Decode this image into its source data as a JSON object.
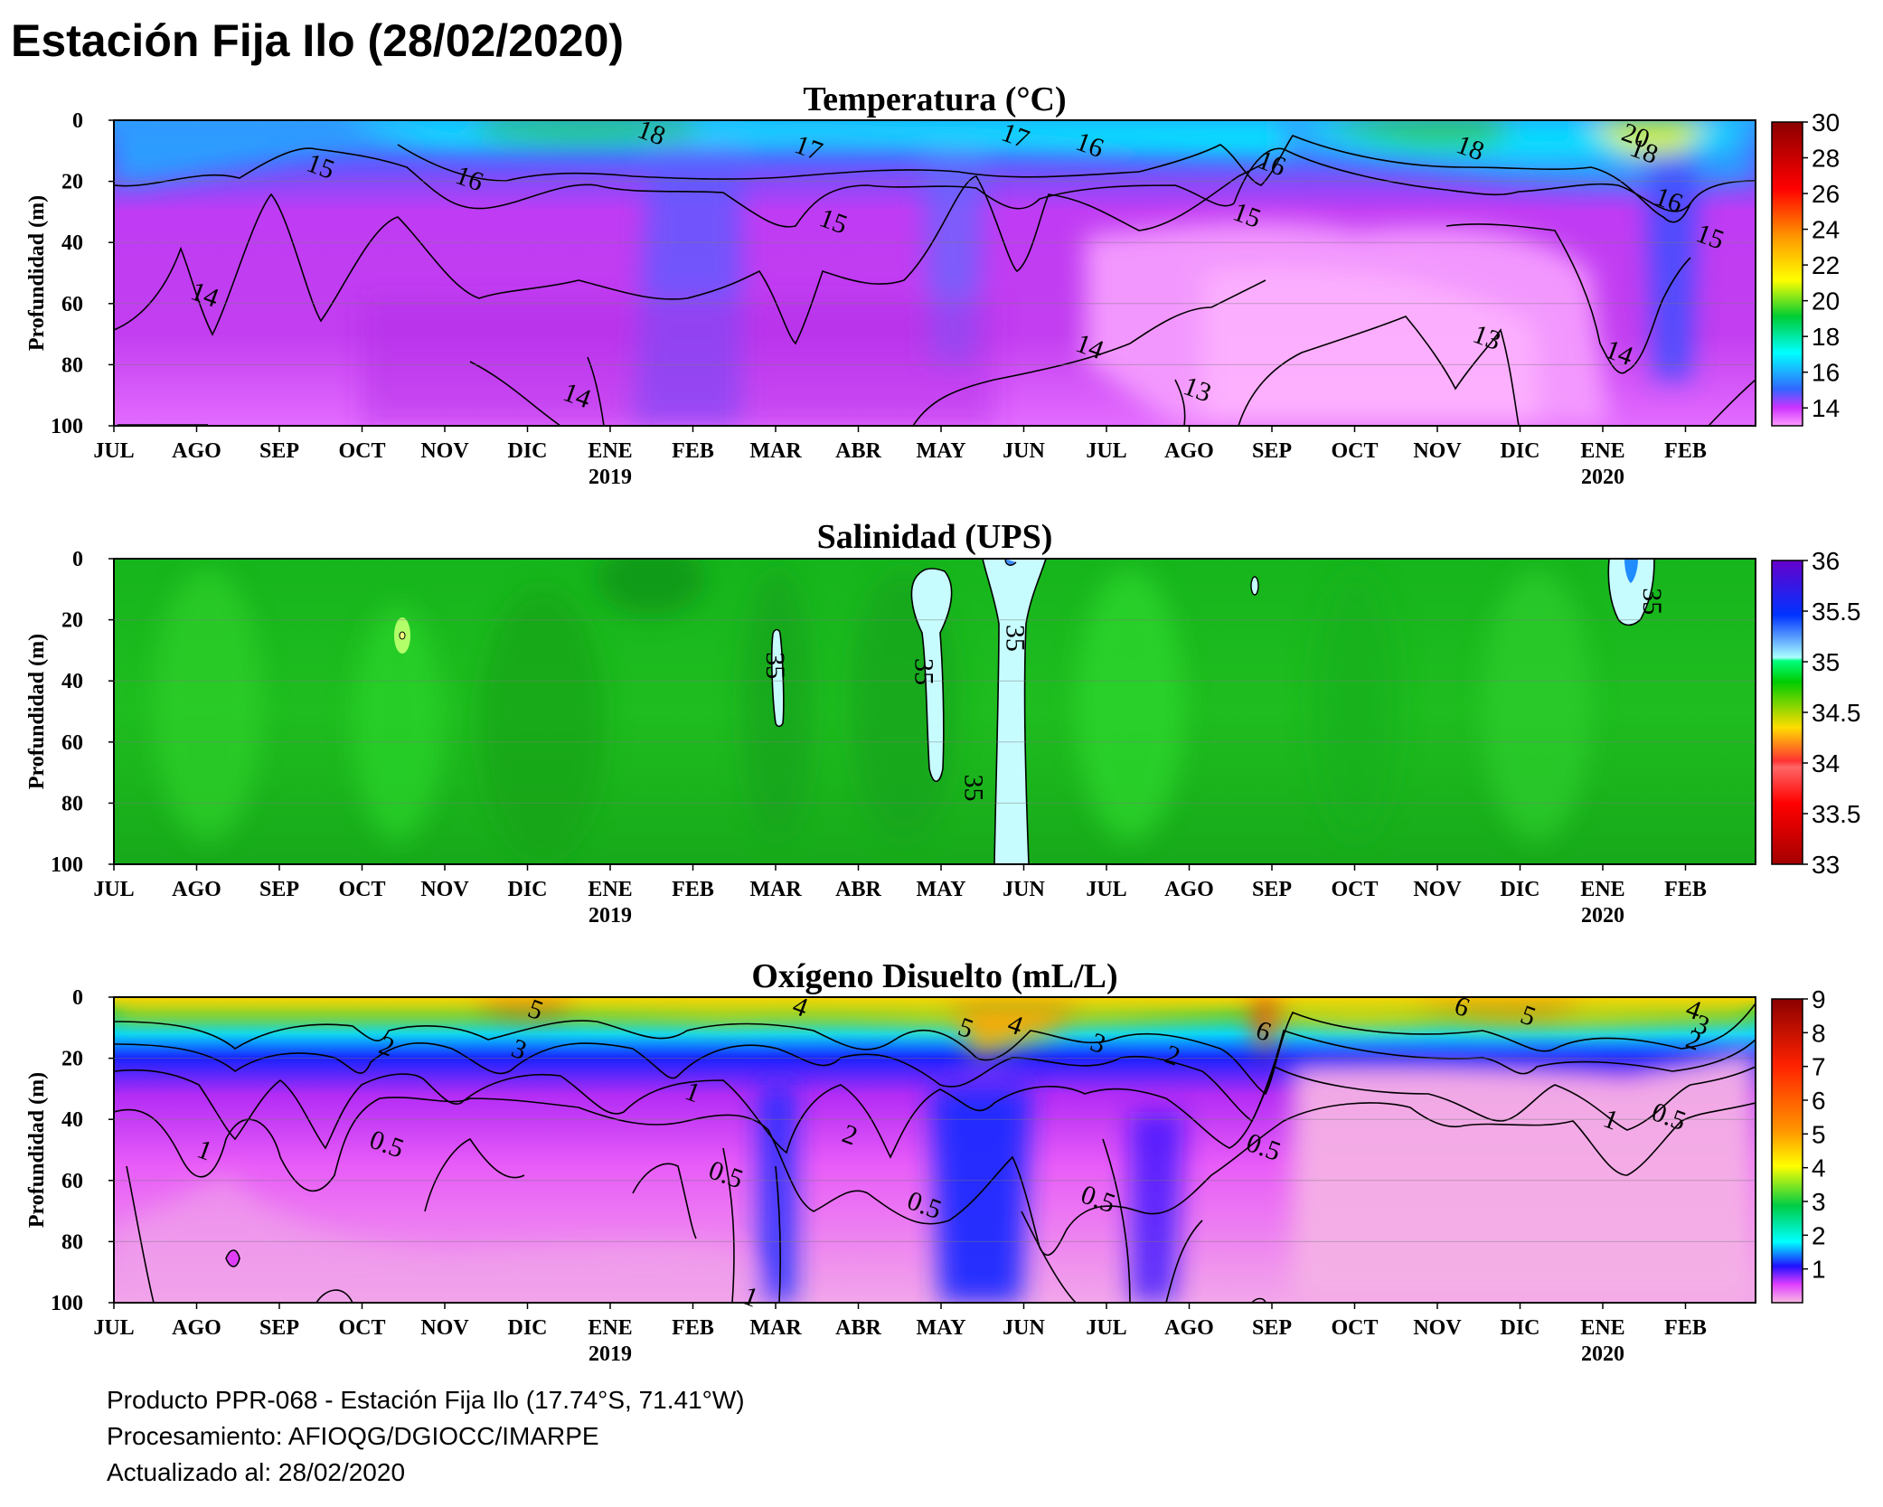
{
  "title": "Estación Fija Ilo (28/02/2020)",
  "chart_data": [
    {
      "type": "heatmap",
      "title": "Temperatura (°C)",
      "ylabel": "Profundidad (m)",
      "yticks": [
        "0",
        "20",
        "40",
        "60",
        "80",
        "100"
      ],
      "ylim": [
        100,
        0
      ],
      "months": [
        "JUL",
        "AGO",
        "SEP",
        "OCT",
        "NOV",
        "DIC",
        "ENE",
        "FEB",
        "MAR",
        "ABR",
        "MAY",
        "JUN",
        "JUL",
        "AGO",
        "SEP",
        "OCT",
        "NOV",
        "DIC",
        "ENE",
        "FEB"
      ],
      "year_labels": [
        {
          "month_index": 6,
          "label": "2019"
        },
        {
          "month_index": 18,
          "label": "2020"
        }
      ],
      "colorbar_ticks": [
        "30",
        "28",
        "26",
        "24",
        "22",
        "20",
        "18",
        "16",
        "14"
      ],
      "colorbar_range": [
        13,
        30
      ],
      "contour_labels": [
        {
          "text": "15",
          "month": 2.5,
          "depth": 15
        },
        {
          "text": "16",
          "month": 4.3,
          "depth": 19
        },
        {
          "text": "18",
          "month": 6.5,
          "depth": 4
        },
        {
          "text": "17",
          "month": 8.4,
          "depth": 9
        },
        {
          "text": "17",
          "month": 10.9,
          "depth": 5
        },
        {
          "text": "16",
          "month": 11.8,
          "depth": 8
        },
        {
          "text": "15",
          "month": 8.7,
          "depth": 33
        },
        {
          "text": "14",
          "month": 1.1,
          "depth": 57
        },
        {
          "text": "14",
          "month": 5.6,
          "depth": 90
        },
        {
          "text": "14",
          "month": 11.8,
          "depth": 74
        },
        {
          "text": "13",
          "month": 13.1,
          "depth": 88
        },
        {
          "text": "13",
          "month": 16.6,
          "depth": 71
        },
        {
          "text": "16",
          "month": 14.0,
          "depth": 14
        },
        {
          "text": "15",
          "month": 13.7,
          "depth": 31
        },
        {
          "text": "18",
          "month": 16.4,
          "depth": 9
        },
        {
          "text": "20",
          "month": 18.4,
          "depth": 5
        },
        {
          "text": "18",
          "month": 18.5,
          "depth": 10
        },
        {
          "text": "16",
          "month": 18.8,
          "depth": 26
        },
        {
          "text": "15",
          "month": 19.3,
          "depth": 38
        },
        {
          "text": "14",
          "month": 18.2,
          "depth": 76
        }
      ]
    },
    {
      "type": "heatmap",
      "title": "Salinidad (UPS)",
      "ylabel": "Profundidad (m)",
      "yticks": [
        "0",
        "20",
        "40",
        "60",
        "80",
        "100"
      ],
      "ylim": [
        100,
        0
      ],
      "months": [
        "JUL",
        "AGO",
        "SEP",
        "OCT",
        "NOV",
        "DIC",
        "ENE",
        "FEB",
        "MAR",
        "ABR",
        "MAY",
        "JUN",
        "JUL",
        "AGO",
        "SEP",
        "OCT",
        "NOV",
        "DIC",
        "ENE",
        "FEB"
      ],
      "year_labels": [
        {
          "month_index": 6,
          "label": "2019"
        },
        {
          "month_index": 18,
          "label": "2020"
        }
      ],
      "colorbar_ticks": [
        "36",
        "35.5",
        "35",
        "34.5",
        "34",
        "33.5",
        "33"
      ],
      "colorbar_range": [
        33,
        36
      ],
      "contour_labels": [
        {
          "text": "35",
          "month": 8.0,
          "depth": 35
        },
        {
          "text": "35",
          "month": 9.8,
          "depth": 37
        },
        {
          "text": "35",
          "month": 10.9,
          "depth": 26
        },
        {
          "text": "35",
          "month": 10.4,
          "depth": 75
        },
        {
          "text": "35",
          "month": 18.6,
          "depth": 14
        }
      ]
    },
    {
      "type": "heatmap",
      "title": "Oxígeno Disuelto (mL/L)",
      "ylabel": "Profundidad (m)",
      "yticks": [
        "0",
        "20",
        "40",
        "60",
        "80",
        "100"
      ],
      "ylim": [
        100,
        0
      ],
      "months": [
        "JUL",
        "AGO",
        "SEP",
        "OCT",
        "NOV",
        "DIC",
        "ENE",
        "FEB",
        "MAR",
        "ABR",
        "MAY",
        "JUN",
        "JUL",
        "AGO",
        "SEP",
        "OCT",
        "NOV",
        "DIC",
        "ENE",
        "FEB"
      ],
      "year_labels": [
        {
          "month_index": 6,
          "label": "2019"
        },
        {
          "month_index": 18,
          "label": "2020"
        }
      ],
      "colorbar_ticks": [
        "9",
        "8",
        "7",
        "6",
        "5",
        "4",
        "3",
        "2",
        "1"
      ],
      "colorbar_range": [
        0,
        9
      ],
      "contour_labels": [
        {
          "text": "2",
          "month": 3.3,
          "depth": 16
        },
        {
          "text": "3",
          "month": 4.9,
          "depth": 17
        },
        {
          "text": "5",
          "month": 5.1,
          "depth": 4
        },
        {
          "text": "1",
          "month": 7.0,
          "depth": 31
        },
        {
          "text": "4",
          "month": 8.3,
          "depth": 3
        },
        {
          "text": "5",
          "month": 10.3,
          "depth": 10
        },
        {
          "text": "4",
          "month": 10.9,
          "depth": 9
        },
        {
          "text": "3",
          "month": 11.9,
          "depth": 15
        },
        {
          "text": "2",
          "month": 12.8,
          "depth": 19
        },
        {
          "text": "0.5",
          "month": 3.3,
          "depth": 48
        },
        {
          "text": "1",
          "month": 1.1,
          "depth": 50
        },
        {
          "text": "0.5",
          "month": 7.4,
          "depth": 58
        },
        {
          "text": "2",
          "month": 8.9,
          "depth": 45
        },
        {
          "text": "0.5",
          "month": 9.8,
          "depth": 68
        },
        {
          "text": "0.5",
          "month": 11.9,
          "depth": 66
        },
        {
          "text": "1",
          "month": 7.7,
          "depth": 98
        },
        {
          "text": "6",
          "month": 13.9,
          "depth": 11
        },
        {
          "text": "0.5",
          "month": 13.9,
          "depth": 49
        },
        {
          "text": "6",
          "month": 16.3,
          "depth": 3
        },
        {
          "text": "5",
          "month": 17.1,
          "depth": 6
        },
        {
          "text": "4",
          "month": 19.1,
          "depth": 4
        },
        {
          "text": "3",
          "month": 19.2,
          "depth": 9
        },
        {
          "text": "2",
          "month": 19.1,
          "depth": 14
        },
        {
          "text": "1",
          "month": 18.1,
          "depth": 40
        },
        {
          "text": "0.5",
          "month": 18.8,
          "depth": 39
        }
      ]
    }
  ],
  "footer": {
    "line1": "Producto PPR-068 - Estación Fija Ilo (17.74°S, 71.41°W)",
    "line2": "Procesamiento: AFIOQG/DGIOCC/IMARPE",
    "line3": "Actualizado al: 28/02/2020"
  },
  "colors": {
    "temp_scale": [
      "#ff99ff",
      "#cc33ff",
      "#3366ff",
      "#00ffff",
      "#00cc33",
      "#ffff00",
      "#ff9900",
      "#ff0000",
      "#8b0000"
    ],
    "sal_scale": [
      "#a30000",
      "#ff0000",
      "#ff6666",
      "#ffdd00",
      "#00cc00",
      "#00ff80",
      "#0033ff",
      "#6600cc"
    ],
    "oxy_scale": [
      "#f8b9e3",
      "#e040ff",
      "#2010ff",
      "#00ffff",
      "#00cc44",
      "#ffff00",
      "#ff9900",
      "#ff2200",
      "#8b0000"
    ]
  }
}
